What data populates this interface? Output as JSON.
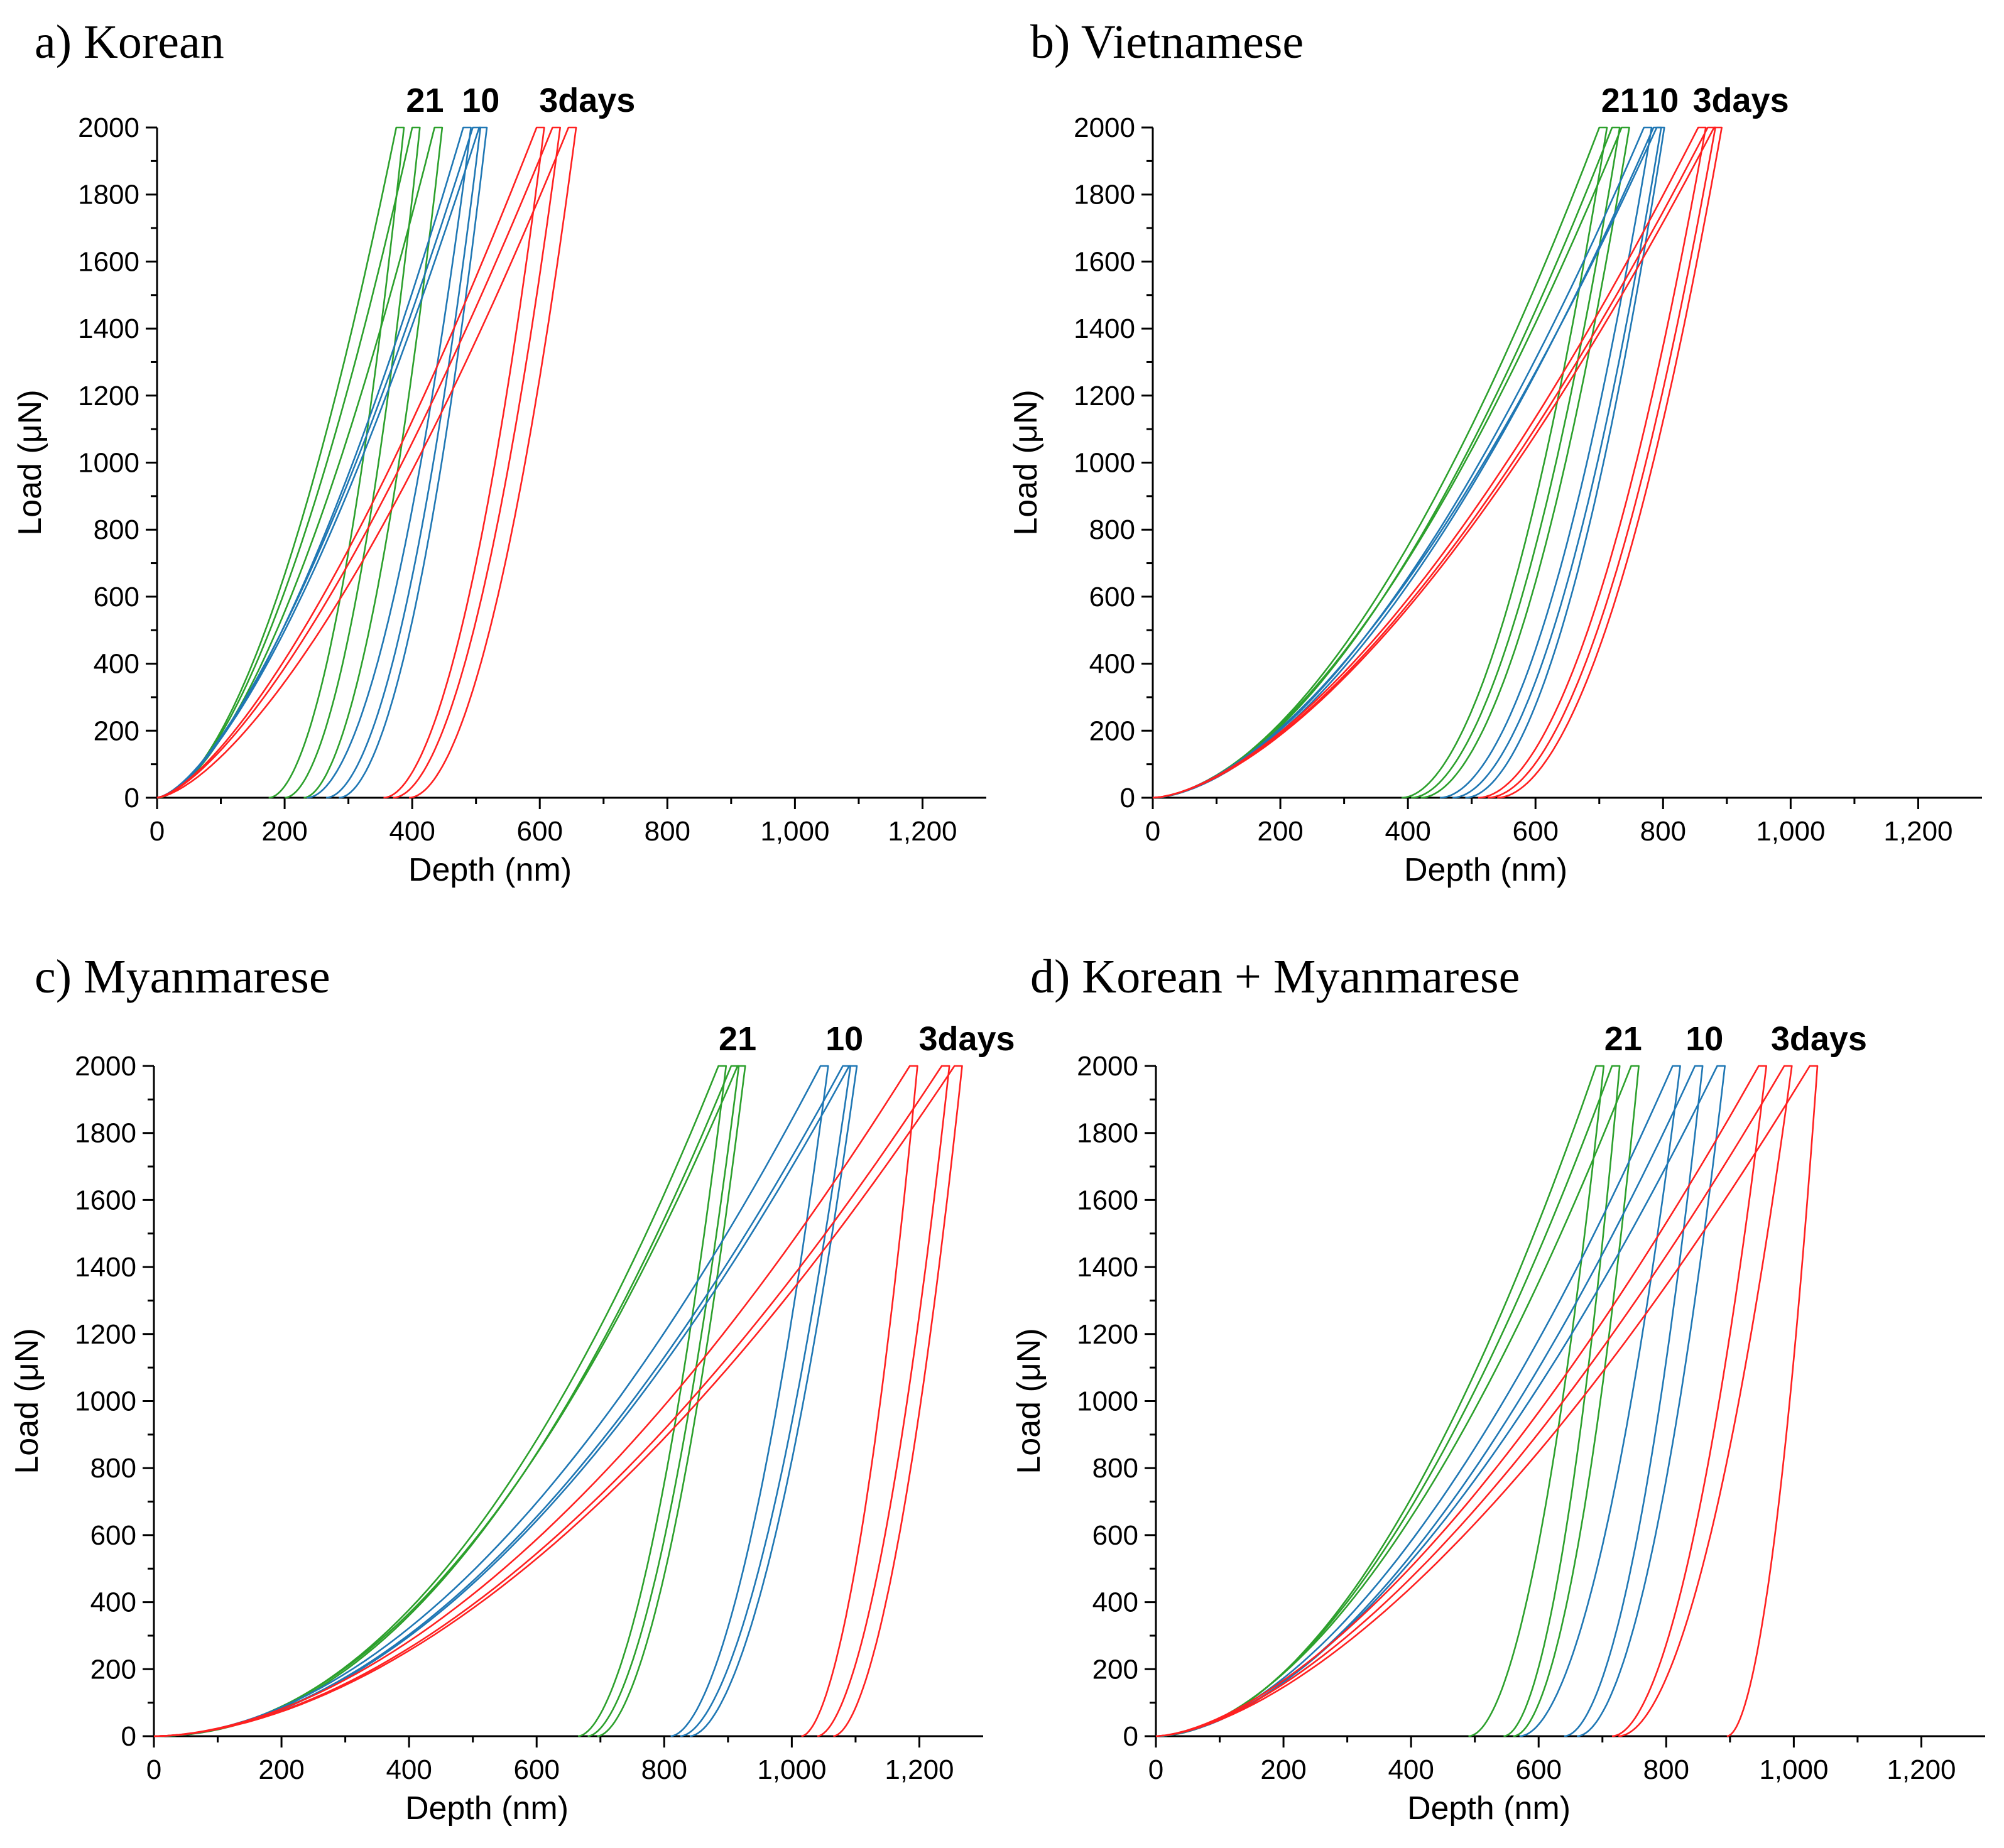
{
  "chart_data": [
    {
      "type": "line",
      "title": "a) Korean",
      "xlabel": "Depth (nm)",
      "ylabel": "Load (μN)",
      "xlim": [
        0,
        1300
      ],
      "ylim": [
        0,
        2000
      ],
      "x_ticks": [
        "0",
        "200",
        "400",
        "600",
        "800",
        "1,000",
        "1,200"
      ],
      "y_ticks": [
        "0",
        "200",
        "400",
        "600",
        "800",
        "1000",
        "1200",
        "1400",
        "1600",
        "1800",
        "2000"
      ],
      "annotations": [
        "21",
        "10",
        "3days"
      ],
      "series": [
        {
          "name": "21 days",
          "color": "#2ca02c",
          "curves": [
            {
              "hmax": 375,
              "hf": 175,
              "n": 1.75,
              "m": 1.9
            },
            {
              "hmax": 400,
              "hf": 200,
              "n": 1.7,
              "m": 1.9
            },
            {
              "hmax": 435,
              "hf": 230,
              "n": 1.65,
              "m": 1.85
            }
          ]
        },
        {
          "name": "10 days",
          "color": "#1f77b4",
          "curves": [
            {
              "hmax": 480,
              "hf": 235,
              "n": 1.55,
              "m": 1.9
            },
            {
              "hmax": 495,
              "hf": 265,
              "n": 1.5,
              "m": 1.9
            },
            {
              "hmax": 505,
              "hf": 285,
              "n": 1.5,
              "m": 1.9
            }
          ]
        },
        {
          "name": "3 days",
          "color": "#ff2020",
          "curves": [
            {
              "hmax": 595,
              "hf": 355,
              "n": 1.45,
              "m": 1.9
            },
            {
              "hmax": 620,
              "hf": 370,
              "n": 1.45,
              "m": 1.9
            },
            {
              "hmax": 645,
              "hf": 395,
              "n": 1.5,
              "m": 1.9
            }
          ]
        }
      ]
    },
    {
      "type": "line",
      "title": "b) Vietnamese",
      "xlabel": "Depth (nm)",
      "ylabel": "Load (μN)",
      "xlim": [
        0,
        1300
      ],
      "ylim": [
        0,
        2000
      ],
      "x_ticks": [
        "0",
        "200",
        "400",
        "600",
        "800",
        "1,000",
        "1,200"
      ],
      "y_ticks": [
        "0",
        "200",
        "400",
        "600",
        "800",
        "1000",
        "1200",
        "1400",
        "1600",
        "1800",
        "2000"
      ],
      "annotations": [
        "21",
        "10",
        "3days"
      ],
      "series": [
        {
          "name": "21 days",
          "color": "#2ca02c",
          "curves": [
            {
              "hmax": 700,
              "hf": 390,
              "n": 1.75,
              "m": 1.9
            },
            {
              "hmax": 720,
              "hf": 405,
              "n": 1.75,
              "m": 1.9
            },
            {
              "hmax": 735,
              "hf": 420,
              "n": 1.7,
              "m": 1.9
            }
          ]
        },
        {
          "name": "10 days",
          "color": "#1f77b4",
          "curves": [
            {
              "hmax": 770,
              "hf": 450,
              "n": 1.7,
              "m": 1.9
            },
            {
              "hmax": 785,
              "hf": 470,
              "n": 1.7,
              "m": 1.9
            },
            {
              "hmax": 790,
              "hf": 490,
              "n": 1.65,
              "m": 1.9
            }
          ]
        },
        {
          "name": "3 days",
          "color": "#ff2020",
          "curves": [
            {
              "hmax": 855,
              "hf": 510,
              "n": 1.6,
              "m": 1.9
            },
            {
              "hmax": 870,
              "hf": 525,
              "n": 1.6,
              "m": 1.9
            },
            {
              "hmax": 880,
              "hf": 540,
              "n": 1.6,
              "m": 1.9
            }
          ]
        }
      ]
    },
    {
      "type": "line",
      "title": "c) Myanmarese",
      "xlabel": "Depth (nm)",
      "ylabel": "Load (μN)",
      "xlim": [
        0,
        1300
      ],
      "ylim": [
        0,
        2000
      ],
      "x_ticks": [
        "0",
        "200",
        "400",
        "600",
        "800",
        "1,000",
        "1,200"
      ],
      "y_ticks": [
        "0",
        "200",
        "400",
        "600",
        "800",
        "1000",
        "1200",
        "1400",
        "1600",
        "1800",
        "2000"
      ],
      "annotations": [
        "21",
        "10",
        "3days"
      ],
      "series": [
        {
          "name": "21 days",
          "color": "#2ca02c",
          "curves": [
            {
              "hmax": 885,
              "hf": 665,
              "n": 2.1,
              "m": 1.8
            },
            {
              "hmax": 905,
              "hf": 680,
              "n": 2.1,
              "m": 1.8
            },
            {
              "hmax": 915,
              "hf": 695,
              "n": 2.05,
              "m": 1.8
            }
          ]
        },
        {
          "name": "10 days",
          "color": "#1f77b4",
          "curves": [
            {
              "hmax": 1045,
              "hf": 810,
              "n": 1.9,
              "m": 1.8
            },
            {
              "hmax": 1080,
              "hf": 825,
              "n": 1.9,
              "m": 1.8
            },
            {
              "hmax": 1090,
              "hf": 840,
              "n": 1.9,
              "m": 1.8
            }
          ]
        },
        {
          "name": "3 days",
          "color": "#ff2020",
          "curves": [
            {
              "hmax": 1185,
              "hf": 1015,
              "n": 1.8,
              "m": 1.8
            },
            {
              "hmax": 1235,
              "hf": 1040,
              "n": 1.8,
              "m": 1.8
            },
            {
              "hmax": 1255,
              "hf": 1065,
              "n": 1.8,
              "m": 1.8
            }
          ]
        }
      ]
    },
    {
      "type": "line",
      "title": "d) Korean + Myanmarese",
      "xlabel": "Depth (nm)",
      "ylabel": "Load (μN)",
      "xlim": [
        0,
        1300
      ],
      "ylim": [
        0,
        2000
      ],
      "x_ticks": [
        "0",
        "200",
        "400",
        "600",
        "800",
        "1,000",
        "1,200"
      ],
      "y_ticks": [
        "0",
        "200",
        "400",
        "600",
        "800",
        "1000",
        "1200",
        "1400",
        "1600",
        "1800",
        "2000"
      ],
      "annotations": [
        "21",
        "10",
        "3days"
      ],
      "series": [
        {
          "name": "21 days",
          "color": "#2ca02c",
          "curves": [
            {
              "hmax": 690,
              "hf": 490,
              "n": 1.9,
              "m": 1.9
            },
            {
              "hmax": 715,
              "hf": 545,
              "n": 1.85,
              "m": 1.9
            },
            {
              "hmax": 745,
              "hf": 560,
              "n": 1.8,
              "m": 1.9
            }
          ]
        },
        {
          "name": "10 days",
          "color": "#1f77b4",
          "curves": [
            {
              "hmax": 810,
              "hf": 570,
              "n": 1.75,
              "m": 1.9
            },
            {
              "hmax": 845,
              "hf": 640,
              "n": 1.75,
              "m": 1.9
            },
            {
              "hmax": 880,
              "hf": 660,
              "n": 1.7,
              "m": 1.9
            }
          ]
        },
        {
          "name": "3 days",
          "color": "#ff2020",
          "curves": [
            {
              "hmax": 945,
              "hf": 715,
              "n": 1.6,
              "m": 1.9
            },
            {
              "hmax": 985,
              "hf": 725,
              "n": 1.6,
              "m": 1.9
            },
            {
              "hmax": 1025,
              "hf": 895,
              "n": 1.6,
              "m": 1.9
            }
          ]
        }
      ]
    }
  ]
}
